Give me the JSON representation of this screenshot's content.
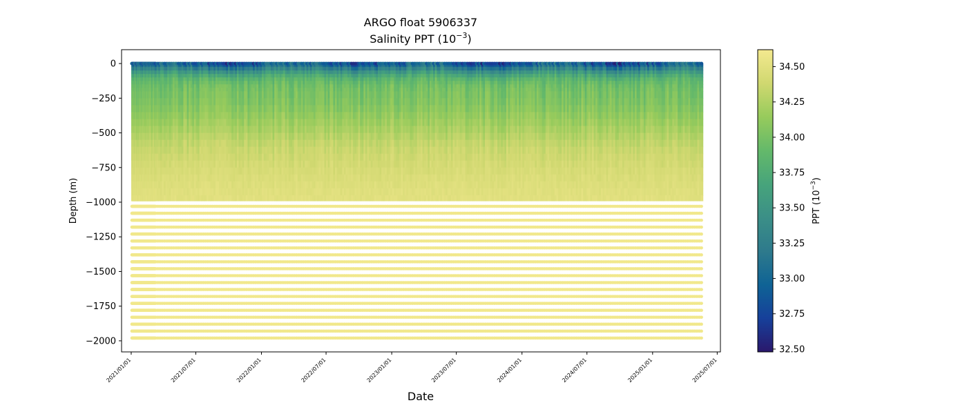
{
  "chart_data": {
    "type": "scatter",
    "title": "ARGO float 5906337",
    "subtitle_prefix": "Salinity PPT (10",
    "subtitle_exp": "−3",
    "subtitle_suffix": ")",
    "xlabel": "Date",
    "ylabel": "Depth (m)",
    "x_range": [
      "2020-12-05",
      "2025-07-10"
    ],
    "xlim_dates": [
      "2021-01-01",
      "2025-05-20"
    ],
    "ylim": [
      -2080,
      100
    ],
    "x_ticks": [
      "2021/01/01",
      "2021/07/01",
      "2022/01/01",
      "2022/07/01",
      "2023/01/01",
      "2023/07/01",
      "2024/01/01",
      "2024/07/01",
      "2025/01/01",
      "2025/07/01"
    ],
    "y_ticks": [
      0,
      -250,
      -500,
      -750,
      -1000,
      -1250,
      -1500,
      -1750,
      -2000
    ],
    "colorbar": {
      "label_prefix": "PPT (10",
      "label_exp": "−3",
      "label_suffix": ")",
      "min": 32.48,
      "max": 34.62,
      "ticks": [
        "32.50",
        "32.75",
        "33.00",
        "33.25",
        "33.50",
        "33.75",
        "34.00",
        "34.25",
        "34.50"
      ],
      "colormap": "haline",
      "stops": [
        "#2a186c",
        "#16409a",
        "#0f6395",
        "#2e7a8c",
        "#3b8f87",
        "#47a47b",
        "#64b96a",
        "#97cb5c",
        "#d0d870",
        "#f4e98f"
      ]
    },
    "profiles": {
      "start": "2021-01-03",
      "end": "2025-05-20",
      "dense_until": "2021-03-10",
      "dense_interval_days": 1,
      "interval_days": 5,
      "deep_levels_m": [
        -1030,
        -1080,
        -1130,
        -1180,
        -1230,
        -1280,
        -1330,
        -1380,
        -1430,
        -1480,
        -1530,
        -1580,
        -1630,
        -1680,
        -1730,
        -1780,
        -1830,
        -1880,
        -1930,
        -1980
      ]
    },
    "salinity_profile": {
      "depth_m": [
        0,
        -25,
        -50,
        -100,
        -150,
        -200,
        -300,
        -400,
        -500,
        -600,
        -750,
        -900,
        -1000
      ],
      "mean_ppt": [
        32.9,
        33.1,
        33.4,
        33.8,
        33.95,
        34.0,
        34.05,
        34.15,
        34.25,
        34.35,
        34.42,
        34.48,
        34.5
      ],
      "deep_ppt": 34.6
    },
    "grid": false,
    "legend": "none"
  }
}
